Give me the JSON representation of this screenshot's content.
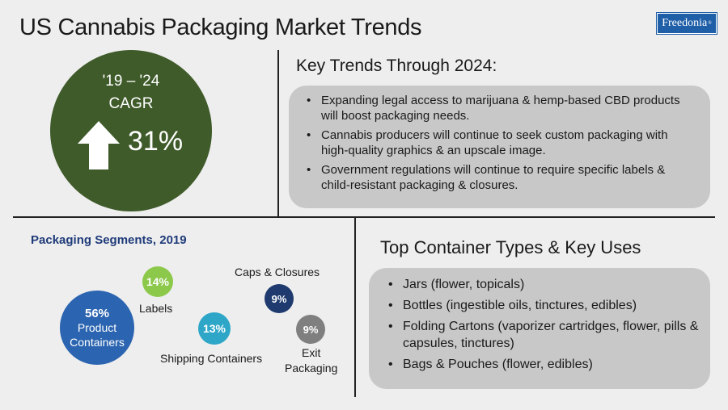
{
  "title": "US Cannabis Packaging Market Trends",
  "logo": {
    "text": "Freedonia",
    "mark": "®"
  },
  "cagr": {
    "period": "'19 – '24",
    "label": "CAGR",
    "value": "31%",
    "circle_color": "#3f5b2a",
    "arrow_icon": "up-arrow-icon"
  },
  "key_trends": {
    "heading": "Key Trends Through 2024:",
    "items": [
      "Expanding legal access to marijuana & hemp-based CBD products will boost packaging needs.",
      "Cannabis producers will continue to seek custom packaging with high-quality graphics & an upscale image.",
      "Government regulations will continue to require specific labels & child-resistant packaging & closures."
    ]
  },
  "segments": {
    "heading": "Packaging Segments, 2019",
    "items": [
      {
        "name_lines": [
          "Product",
          "Containers"
        ],
        "pct": "56%",
        "color": "#2b64b0"
      },
      {
        "name": "Labels",
        "pct": "14%",
        "color": "#8cc84a"
      },
      {
        "name": "Shipping Containers",
        "pct": "13%",
        "color": "#2ea6c8"
      },
      {
        "name": "Caps & Closures",
        "pct": "9%",
        "color": "#1e3a6e"
      },
      {
        "name_lines": [
          "Exit",
          "Packaging"
        ],
        "pct": "9%",
        "color": "#7f7f7f"
      }
    ]
  },
  "container_types": {
    "heading": "Top Container Types & Key Uses",
    "items": [
      "Jars (flower, topicals)",
      "Bottles (ingestible oils, tinctures, edibles)",
      "Folding Cartons (vaporizer cartridges, flower, pills & capsules, tinctures)",
      "Bags & Pouches (flower, edibles)"
    ]
  },
  "bullet_char": "•"
}
